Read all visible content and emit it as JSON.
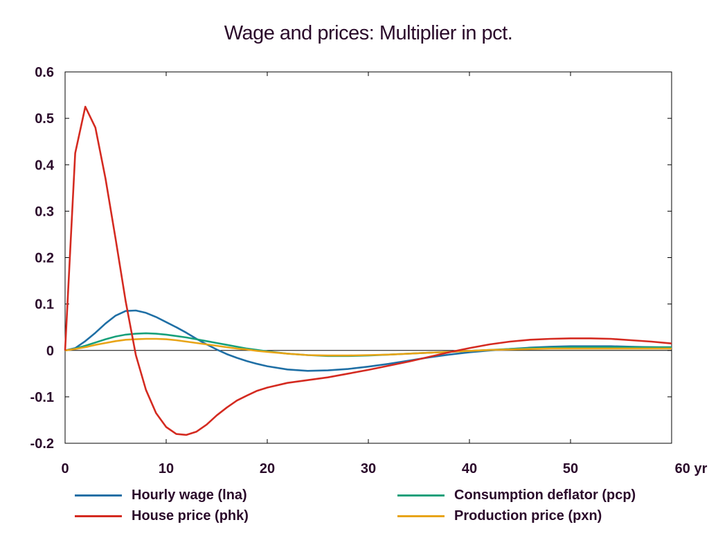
{
  "chart_data": {
    "type": "line",
    "title": "Wage and prices: Multiplier in pct.",
    "xlabel": "",
    "ylabel": "",
    "xlim": [
      0,
      60
    ],
    "ylim": [
      -0.2,
      0.6
    ],
    "x_ticks": [
      {
        "value": 0,
        "label": "0"
      },
      {
        "value": 10,
        "label": "10"
      },
      {
        "value": 20,
        "label": "20"
      },
      {
        "value": 30,
        "label": "30"
      },
      {
        "value": 40,
        "label": "40"
      },
      {
        "value": 50,
        "label": "50"
      },
      {
        "value": 60,
        "label": "60 yr"
      }
    ],
    "y_ticks": [
      {
        "value": 0.6,
        "label": "0.6"
      },
      {
        "value": 0.5,
        "label": "0.5"
      },
      {
        "value": 0.4,
        "label": "0.4"
      },
      {
        "value": 0.3,
        "label": "0.3"
      },
      {
        "value": 0.2,
        "label": "0.2"
      },
      {
        "value": 0.1,
        "label": "0.1"
      },
      {
        "value": 0,
        "label": "0"
      },
      {
        "value": -0.1,
        "label": "-0.1"
      },
      {
        "value": -0.2,
        "label": "-0.2"
      }
    ],
    "zero_line": true,
    "grid": false,
    "legend_position": "bottom",
    "series": [
      {
        "name": "Hourly wage (lna)",
        "color": "#1f6fa5",
        "points": [
          [
            0,
            0
          ],
          [
            1,
            0.005
          ],
          [
            2,
            0.02
          ],
          [
            3,
            0.038
          ],
          [
            4,
            0.058
          ],
          [
            5,
            0.075
          ],
          [
            6,
            0.085
          ],
          [
            7,
            0.086
          ],
          [
            8,
            0.081
          ],
          [
            9,
            0.072
          ],
          [
            10,
            0.061
          ],
          [
            11,
            0.05
          ],
          [
            12,
            0.038
          ],
          [
            13,
            0.025
          ],
          [
            14,
            0.013
          ],
          [
            15,
            0.002
          ],
          [
            16,
            -0.008
          ],
          [
            17,
            -0.016
          ],
          [
            18,
            -0.023
          ],
          [
            19,
            -0.029
          ],
          [
            20,
            -0.034
          ],
          [
            22,
            -0.041
          ],
          [
            24,
            -0.044
          ],
          [
            26,
            -0.043
          ],
          [
            28,
            -0.04
          ],
          [
            30,
            -0.035
          ],
          [
            32,
            -0.029
          ],
          [
            34,
            -0.022
          ],
          [
            36,
            -0.015
          ],
          [
            38,
            -0.009
          ],
          [
            40,
            -0.004
          ],
          [
            42,
            0
          ],
          [
            44,
            0.003
          ],
          [
            46,
            0.006
          ],
          [
            48,
            0.008
          ],
          [
            50,
            0.009
          ],
          [
            52,
            0.009
          ],
          [
            54,
            0.009
          ],
          [
            56,
            0.008
          ],
          [
            58,
            0.007
          ],
          [
            60,
            0.006
          ]
        ]
      },
      {
        "name": "House price (phk)",
        "color": "#d42a20",
        "points": [
          [
            0,
            0
          ],
          [
            1,
            0.425
          ],
          [
            2,
            0.525
          ],
          [
            3,
            0.48
          ],
          [
            4,
            0.37
          ],
          [
            5,
            0.24
          ],
          [
            6,
            0.105
          ],
          [
            7,
            -0.01
          ],
          [
            8,
            -0.085
          ],
          [
            9,
            -0.135
          ],
          [
            10,
            -0.165
          ],
          [
            11,
            -0.18
          ],
          [
            12,
            -0.182
          ],
          [
            13,
            -0.175
          ],
          [
            14,
            -0.16
          ],
          [
            15,
            -0.14
          ],
          [
            16,
            -0.123
          ],
          [
            17,
            -0.108
          ],
          [
            18,
            -0.097
          ],
          [
            19,
            -0.087
          ],
          [
            20,
            -0.08
          ],
          [
            22,
            -0.07
          ],
          [
            24,
            -0.064
          ],
          [
            26,
            -0.058
          ],
          [
            28,
            -0.05
          ],
          [
            30,
            -0.042
          ],
          [
            32,
            -0.033
          ],
          [
            34,
            -0.024
          ],
          [
            36,
            -0.014
          ],
          [
            38,
            -0.004
          ],
          [
            40,
            0.005
          ],
          [
            42,
            0.013
          ],
          [
            44,
            0.019
          ],
          [
            46,
            0.023
          ],
          [
            48,
            0.025
          ],
          [
            50,
            0.026
          ],
          [
            52,
            0.026
          ],
          [
            54,
            0.025
          ],
          [
            56,
            0.022
          ],
          [
            58,
            0.019
          ],
          [
            60,
            0.015
          ]
        ]
      },
      {
        "name": "Consumption deflator (pcp)",
        "color": "#17a07a",
        "points": [
          [
            0,
            0
          ],
          [
            1,
            0.004
          ],
          [
            2,
            0.01
          ],
          [
            3,
            0.017
          ],
          [
            4,
            0.024
          ],
          [
            5,
            0.03
          ],
          [
            6,
            0.034
          ],
          [
            7,
            0.036
          ],
          [
            8,
            0.037
          ],
          [
            9,
            0.036
          ],
          [
            10,
            0.034
          ],
          [
            11,
            0.031
          ],
          [
            12,
            0.028
          ],
          [
            13,
            0.024
          ],
          [
            14,
            0.02
          ],
          [
            15,
            0.016
          ],
          [
            16,
            0.012
          ],
          [
            17,
            0.008
          ],
          [
            18,
            0.004
          ],
          [
            19,
            0.001
          ],
          [
            20,
            -0.002
          ],
          [
            22,
            -0.007
          ],
          [
            24,
            -0.01
          ],
          [
            26,
            -0.012
          ],
          [
            28,
            -0.012
          ],
          [
            30,
            -0.011
          ],
          [
            32,
            -0.009
          ],
          [
            34,
            -0.007
          ],
          [
            36,
            -0.005
          ],
          [
            38,
            -0.003
          ],
          [
            40,
            -0.001
          ],
          [
            42,
            0.001
          ],
          [
            44,
            0.003
          ],
          [
            46,
            0.005
          ],
          [
            48,
            0.006
          ],
          [
            50,
            0.007
          ],
          [
            52,
            0.007
          ],
          [
            54,
            0.007
          ],
          [
            56,
            0.007
          ],
          [
            58,
            0.007
          ],
          [
            60,
            0.007
          ]
        ]
      },
      {
        "name": "Production price (pxn)",
        "color": "#e8a417",
        "points": [
          [
            0,
            0
          ],
          [
            1,
            0.003
          ],
          [
            2,
            0.007
          ],
          [
            3,
            0.012
          ],
          [
            4,
            0.016
          ],
          [
            5,
            0.02
          ],
          [
            6,
            0.023
          ],
          [
            7,
            0.024
          ],
          [
            8,
            0.025
          ],
          [
            9,
            0.025
          ],
          [
            10,
            0.024
          ],
          [
            11,
            0.022
          ],
          [
            12,
            0.019
          ],
          [
            13,
            0.016
          ],
          [
            14,
            0.013
          ],
          [
            15,
            0.01
          ],
          [
            16,
            0.007
          ],
          [
            17,
            0.004
          ],
          [
            18,
            0.002
          ],
          [
            19,
            -0.001
          ],
          [
            20,
            -0.003
          ],
          [
            22,
            -0.007
          ],
          [
            24,
            -0.01
          ],
          [
            26,
            -0.011
          ],
          [
            28,
            -0.011
          ],
          [
            30,
            -0.01
          ],
          [
            32,
            -0.009
          ],
          [
            34,
            -0.007
          ],
          [
            36,
            -0.005
          ],
          [
            38,
            -0.003
          ],
          [
            40,
            -0.001
          ],
          [
            42,
            0.001
          ],
          [
            44,
            0.002
          ],
          [
            46,
            0.003
          ],
          [
            48,
            0.004
          ],
          [
            50,
            0.004
          ],
          [
            52,
            0.004
          ],
          [
            54,
            0.004
          ],
          [
            56,
            0.004
          ],
          [
            58,
            0.004
          ],
          [
            60,
            0.004
          ]
        ]
      }
    ]
  },
  "colors": {
    "text": "#2a0a2a",
    "axis": "#000000"
  }
}
